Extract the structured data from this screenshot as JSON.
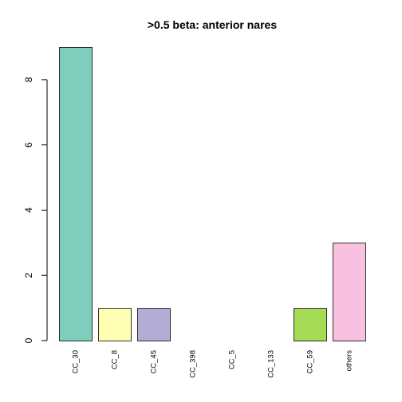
{
  "chart_data": {
    "type": "bar",
    "title": ">0.5 beta:  anterior nares",
    "xlabel": "",
    "ylabel": "",
    "categories": [
      "CC_30",
      "CC_8",
      "CC_45",
      "CC_398",
      "CC_5",
      "CC_133",
      "CC_59",
      "others"
    ],
    "values": [
      9,
      1,
      1,
      0,
      0,
      0,
      1,
      3
    ],
    "colors": [
      "#7FCDBB",
      "#FFFFB3",
      "#B3ADD6",
      "#8DD3C7",
      "#FB8072",
      "#80B1D3",
      "#A6DB56",
      "#F8C1E0"
    ],
    "yticks": [
      0,
      2,
      4,
      6,
      8
    ],
    "ylim": [
      0,
      9
    ],
    "grid": false,
    "legend": "none",
    "bar_border_color": "#000000"
  }
}
